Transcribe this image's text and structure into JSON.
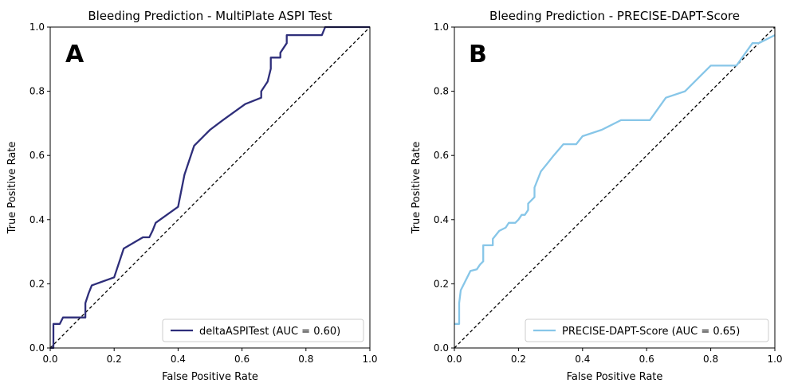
{
  "chart_data": [
    {
      "type": "line",
      "panel_label": "A",
      "title": "Bleeding Prediction - MultiPlate ASPI Test",
      "xlabel": "False Positive Rate",
      "ylabel": "True Positive Rate",
      "xlim": [
        0.0,
        1.0
      ],
      "ylim": [
        0.0,
        1.0
      ],
      "xticks": [
        "0.0",
        "0.2",
        "0.4",
        "0.6",
        "0.8",
        "1.0"
      ],
      "yticks": [
        "0.0",
        "0.2",
        "0.4",
        "0.6",
        "0.8",
        "1.0"
      ],
      "grid": false,
      "legend_location": "lower-right",
      "series": [
        {
          "name": "deltaASPITest (AUC = 0.60)",
          "color": "#2e2e7a",
          "points": [
            [
              0,
              0
            ],
            [
              0.01,
              0
            ],
            [
              0.01,
              0.02
            ],
            [
              0.01,
              0.075
            ],
            [
              0.03,
              0.075
            ],
            [
              0.04,
              0.095
            ],
            [
              0.11,
              0.095
            ],
            [
              0.11,
              0.14
            ],
            [
              0.12,
              0.17
            ],
            [
              0.13,
              0.195
            ],
            [
              0.2,
              0.22
            ],
            [
              0.23,
              0.31
            ],
            [
              0.29,
              0.345
            ],
            [
              0.31,
              0.345
            ],
            [
              0.32,
              0.365
            ],
            [
              0.33,
              0.39
            ],
            [
              0.4,
              0.44
            ],
            [
              0.41,
              0.49
            ],
            [
              0.42,
              0.54
            ],
            [
              0.45,
              0.63
            ],
            [
              0.48,
              0.66
            ],
            [
              0.5,
              0.68
            ],
            [
              0.54,
              0.71
            ],
            [
              0.61,
              0.76
            ],
            [
              0.66,
              0.78
            ],
            [
              0.66,
              0.8
            ],
            [
              0.68,
              0.83
            ],
            [
              0.69,
              0.87
            ],
            [
              0.69,
              0.905
            ],
            [
              0.72,
              0.905
            ],
            [
              0.72,
              0.92
            ],
            [
              0.74,
              0.95
            ],
            [
              0.74,
              0.975
            ],
            [
              0.85,
              0.975
            ],
            [
              0.86,
              1.0
            ],
            [
              1.0,
              1.0
            ]
          ]
        }
      ],
      "reference_line": {
        "style": "dashed",
        "color": "#000000",
        "from": [
          0,
          0
        ],
        "to": [
          1,
          1
        ]
      }
    },
    {
      "type": "line",
      "panel_label": "B",
      "title": "Bleeding Prediction - PRECISE-DAPT-Score",
      "xlabel": "False Positive Rate",
      "ylabel": "True Positive Rate",
      "xlim": [
        0.0,
        1.0
      ],
      "ylim": [
        0.0,
        1.0
      ],
      "xticks": [
        "0.0",
        "0.2",
        "0.4",
        "0.6",
        "0.8",
        "1.0"
      ],
      "yticks": [
        "0.0",
        "0.2",
        "0.4",
        "0.6",
        "0.8",
        "1.0"
      ],
      "grid": false,
      "legend_location": "lower-right",
      "series": [
        {
          "name": "PRECISE-DAPT-Score (AUC = 0.65)",
          "color": "#87c6e8",
          "points": [
            [
              0,
              0.075
            ],
            [
              0.015,
              0.075
            ],
            [
              0.015,
              0.14
            ],
            [
              0.02,
              0.18
            ],
            [
              0.04,
              0.22
            ],
            [
              0.05,
              0.24
            ],
            [
              0.07,
              0.245
            ],
            [
              0.08,
              0.26
            ],
            [
              0.09,
              0.27
            ],
            [
              0.09,
              0.32
            ],
            [
              0.12,
              0.32
            ],
            [
              0.12,
              0.34
            ],
            [
              0.14,
              0.365
            ],
            [
              0.16,
              0.375
            ],
            [
              0.17,
              0.39
            ],
            [
              0.19,
              0.39
            ],
            [
              0.2,
              0.4
            ],
            [
              0.21,
              0.415
            ],
            [
              0.22,
              0.415
            ],
            [
              0.23,
              0.43
            ],
            [
              0.23,
              0.45
            ],
            [
              0.25,
              0.47
            ],
            [
              0.25,
              0.5
            ],
            [
              0.27,
              0.55
            ],
            [
              0.29,
              0.575
            ],
            [
              0.31,
              0.6
            ],
            [
              0.34,
              0.635
            ],
            [
              0.38,
              0.635
            ],
            [
              0.4,
              0.66
            ],
            [
              0.43,
              0.67
            ],
            [
              0.46,
              0.68
            ],
            [
              0.52,
              0.71
            ],
            [
              0.61,
              0.71
            ],
            [
              0.66,
              0.78
            ],
            [
              0.72,
              0.8
            ],
            [
              0.77,
              0.85
            ],
            [
              0.8,
              0.88
            ],
            [
              0.88,
              0.88
            ],
            [
              0.93,
              0.95
            ],
            [
              0.95,
              0.95
            ],
            [
              1.0,
              0.975
            ]
          ]
        }
      ],
      "reference_line": {
        "style": "dashed",
        "color": "#000000",
        "from": [
          0,
          0
        ],
        "to": [
          1,
          1
        ]
      }
    }
  ]
}
